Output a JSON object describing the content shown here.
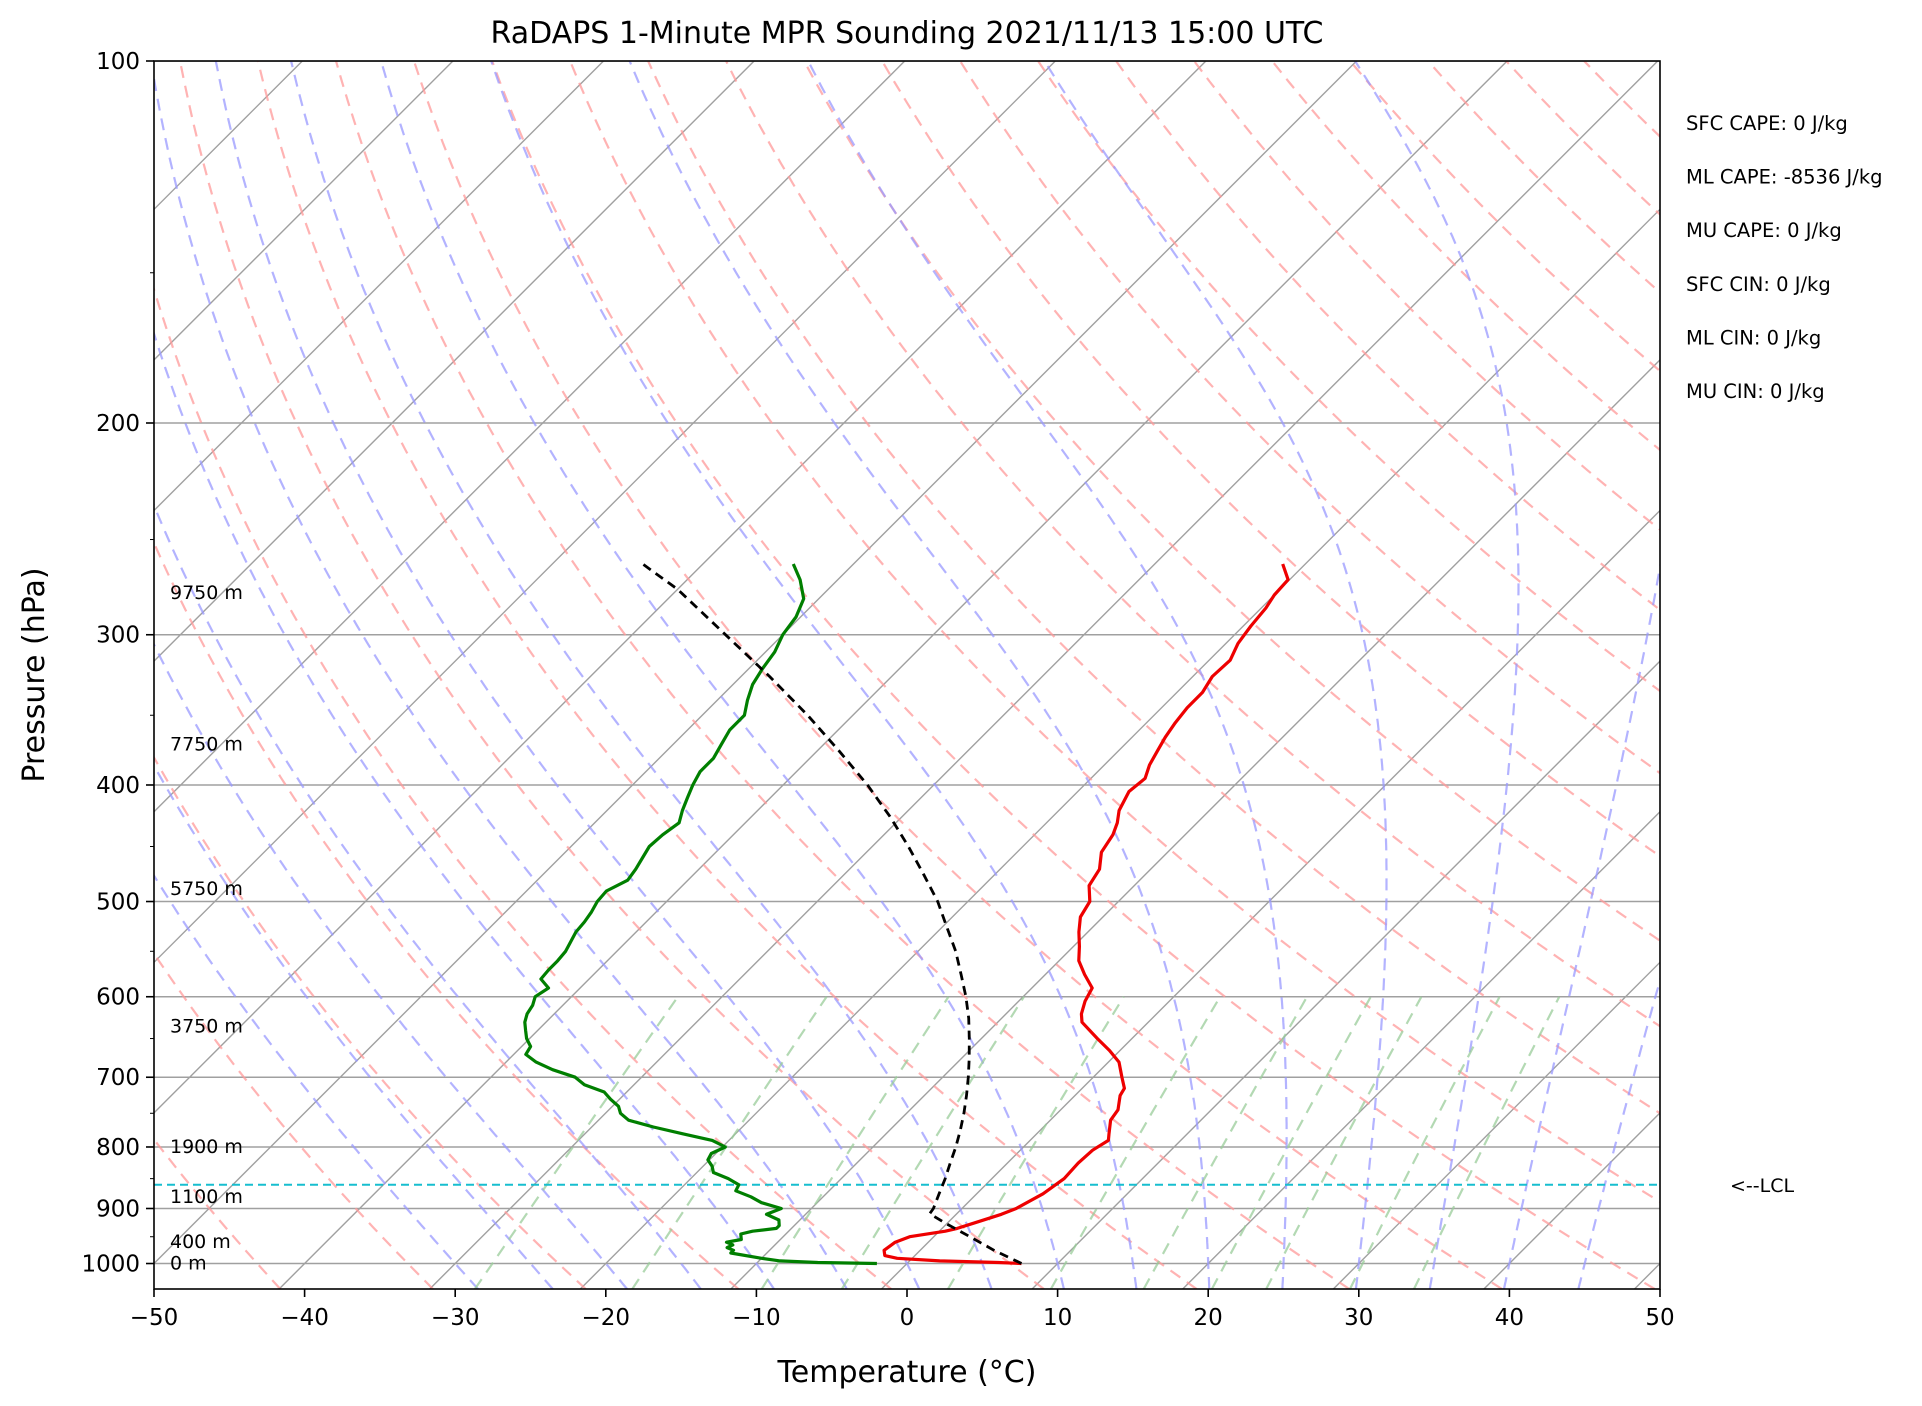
{
  "chart_data": {
    "type": "line",
    "title": "RaDAPS 1-Minute MPR Sounding 2021/11/13 15:00 UTC",
    "xlabel": "Temperature (°C)",
    "ylabel": "Pressure (hPa)",
    "xlim": [
      -50,
      50
    ],
    "ylim": [
      1050,
      100
    ],
    "y_scale": "log",
    "skew": true,
    "x_ticks": [
      "−50",
      "−40",
      "−30",
      "−20",
      "−10",
      "0",
      "10",
      "20",
      "30",
      "40",
      "50"
    ],
    "x_tick_values": [
      -50,
      -40,
      -30,
      -20,
      -10,
      0,
      10,
      20,
      30,
      40,
      50
    ],
    "y_ticks": [
      "100",
      "200",
      "300",
      "400",
      "500",
      "600",
      "700",
      "800",
      "900",
      "1000"
    ],
    "y_tick_values": [
      100,
      200,
      300,
      400,
      500,
      600,
      700,
      800,
      900,
      1000
    ],
    "grid": true,
    "colors": {
      "temperature": "#ee0000",
      "dewpoint": "#007f00",
      "parcel": "#000000",
      "lcl": "#17becf",
      "dry_adiabat": "#ff9999",
      "moist_adiabat": "#9999ff",
      "mixing_ratio": "#99cc99",
      "isotherm": "#a0a0a0"
    },
    "series": [
      {
        "role": "temperature",
        "points": [
          [
            7.6,
            1000
          ],
          [
            6.0,
            998
          ],
          [
            2.0,
            995
          ],
          [
            -1.0,
            990
          ],
          [
            -2.0,
            985
          ],
          [
            -2.4,
            975
          ],
          [
            -2.2,
            960
          ],
          [
            -1.6,
            950
          ],
          [
            0.4,
            940
          ],
          [
            1.0,
            935
          ],
          [
            1.8,
            925
          ],
          [
            3.0,
            910
          ],
          [
            3.6,
            900
          ],
          [
            4.4,
            875
          ],
          [
            4.8,
            850
          ],
          [
            4.7,
            825
          ],
          [
            4.8,
            805
          ],
          [
            5.2,
            790
          ],
          [
            4.8,
            780
          ],
          [
            4.0,
            760
          ],
          [
            3.8,
            745
          ],
          [
            3.0,
            725
          ],
          [
            2.8,
            715
          ],
          [
            1.9,
            700
          ],
          [
            0.7,
            680
          ],
          [
            -0.7,
            665
          ],
          [
            -2.3,
            650
          ],
          [
            -4.4,
            630
          ],
          [
            -5.0,
            620
          ],
          [
            -5.6,
            605
          ],
          [
            -6.0,
            590
          ],
          [
            -7.4,
            575
          ],
          [
            -8.7,
            560
          ],
          [
            -9.6,
            545
          ],
          [
            -10.6,
            530
          ],
          [
            -11.5,
            515
          ],
          [
            -11.9,
            500
          ],
          [
            -13.0,
            485
          ],
          [
            -13.4,
            470
          ],
          [
            -14.4,
            455
          ],
          [
            -14.8,
            440
          ],
          [
            -15.3,
            430
          ],
          [
            -16.0,
            420
          ],
          [
            -16.6,
            405
          ],
          [
            -16.4,
            395
          ],
          [
            -17.0,
            385
          ],
          [
            -17.4,
            375
          ],
          [
            -17.8,
            365
          ],
          [
            -18.1,
            355
          ],
          [
            -18.3,
            345
          ],
          [
            -18.3,
            335
          ],
          [
            -18.7,
            325
          ],
          [
            -18.6,
            315
          ],
          [
            -19.2,
            305
          ],
          [
            -19.5,
            295
          ],
          [
            -19.7,
            285
          ],
          [
            -20.0,
            278
          ],
          [
            -20.1,
            270
          ],
          [
            -21.5,
            262
          ]
        ]
      },
      {
        "role": "dewpoint",
        "points": [
          [
            -2.0,
            1000
          ],
          [
            -6.0,
            998
          ],
          [
            -8.6,
            995
          ],
          [
            -10.0,
            990
          ],
          [
            -12.4,
            980
          ],
          [
            -12.4,
            975
          ],
          [
            -13.0,
            970
          ],
          [
            -12.8,
            965
          ],
          [
            -13.4,
            960
          ],
          [
            -12.6,
            955
          ],
          [
            -12.8,
            950
          ],
          [
            -13.0,
            945
          ],
          [
            -12.4,
            940
          ],
          [
            -11.0,
            935
          ],
          [
            -11.0,
            930
          ],
          [
            -11.4,
            920
          ],
          [
            -12.6,
            910
          ],
          [
            -12.0,
            900
          ],
          [
            -13.7,
            890
          ],
          [
            -14.8,
            880
          ],
          [
            -16.2,
            870
          ],
          [
            -16.4,
            860
          ],
          [
            -17.5,
            850
          ],
          [
            -18.9,
            840
          ],
          [
            -19.4,
            830
          ],
          [
            -20.1,
            820
          ],
          [
            -20.3,
            810
          ],
          [
            -19.8,
            800
          ],
          [
            -21.1,
            790
          ],
          [
            -23.5,
            780
          ],
          [
            -25.9,
            770
          ],
          [
            -28.0,
            760
          ],
          [
            -29.0,
            750
          ],
          [
            -29.6,
            740
          ],
          [
            -30.6,
            730
          ],
          [
            -31.5,
            720
          ],
          [
            -33.3,
            710
          ],
          [
            -34.4,
            700
          ],
          [
            -36.4,
            690
          ],
          [
            -38.0,
            680
          ],
          [
            -39.2,
            670
          ],
          [
            -39.4,
            660
          ],
          [
            -40.2,
            650
          ],
          [
            -40.8,
            640
          ],
          [
            -41.4,
            630
          ],
          [
            -41.8,
            620
          ],
          [
            -42.0,
            610
          ],
          [
            -42.4,
            600
          ],
          [
            -42.1,
            590
          ],
          [
            -43.2,
            580
          ],
          [
            -43.3,
            570
          ],
          [
            -43.3,
            560
          ],
          [
            -43.4,
            550
          ],
          [
            -43.7,
            540
          ],
          [
            -44.0,
            530
          ],
          [
            -44.1,
            520
          ],
          [
            -44.3,
            510
          ],
          [
            -44.6,
            500
          ],
          [
            -44.7,
            490
          ],
          [
            -44.0,
            480
          ],
          [
            -44.2,
            470
          ],
          [
            -44.5,
            460
          ],
          [
            -44.8,
            450
          ],
          [
            -44.7,
            440
          ],
          [
            -44.4,
            430
          ],
          [
            -45.0,
            420
          ],
          [
            -45.5,
            410
          ],
          [
            -46.0,
            400
          ],
          [
            -46.4,
            390
          ],
          [
            -46.4,
            380
          ],
          [
            -46.8,
            370
          ],
          [
            -47.2,
            360
          ],
          [
            -47.2,
            350
          ],
          [
            -48.0,
            340
          ],
          [
            -48.7,
            330
          ],
          [
            -49.1,
            320
          ],
          [
            -49.4,
            310
          ],
          [
            -50.0,
            300
          ],
          [
            -50.3,
            290
          ],
          [
            -51.0,
            280
          ],
          [
            -52.5,
            270
          ],
          [
            -54.0,
            262
          ]
        ]
      },
      {
        "role": "parcel",
        "points": [
          [
            7.6,
            1000
          ],
          [
            4.9,
            975
          ],
          [
            2.4,
            950
          ],
          [
            -0.2,
            925
          ],
          [
            -1.8,
            909
          ],
          [
            -1.9,
            900
          ],
          [
            -2.5,
            875
          ],
          [
            -3.1,
            850
          ],
          [
            -3.8,
            825
          ],
          [
            -4.5,
            800
          ],
          [
            -5.3,
            775
          ],
          [
            -6.2,
            750
          ],
          [
            -7.2,
            725
          ],
          [
            -8.3,
            700
          ],
          [
            -9.5,
            675
          ],
          [
            -10.8,
            650
          ],
          [
            -12.2,
            625
          ],
          [
            -13.8,
            600
          ],
          [
            -15.6,
            575
          ],
          [
            -17.5,
            550
          ],
          [
            -19.7,
            525
          ],
          [
            -22.0,
            500
          ],
          [
            -24.7,
            475
          ],
          [
            -27.6,
            450
          ],
          [
            -30.8,
            425
          ],
          [
            -34.4,
            400
          ],
          [
            -38.5,
            375
          ],
          [
            -43.0,
            350
          ],
          [
            -48.1,
            325
          ],
          [
            -53.8,
            300
          ],
          [
            -60.0,
            275
          ],
          [
            -64.0,
            262
          ]
        ]
      }
    ],
    "lcl_pressure": 860,
    "lcl_label": "<--LCL",
    "height_labels": [
      {
        "text": "0 m",
        "p": 1000
      },
      {
        "text": "400 m",
        "p": 960
      },
      {
        "text": "1100 m",
        "p": 880
      },
      {
        "text": "1900 m",
        "p": 800
      },
      {
        "text": "3750 m",
        "p": 635
      },
      {
        "text": "5750 m",
        "p": 488
      },
      {
        "text": "7750 m",
        "p": 370
      },
      {
        "text": "9750 m",
        "p": 277
      }
    ],
    "annotations": [
      "SFC CAPE: 0 J/kg",
      "ML CAPE: -8536 J/kg",
      "MU CAPE: 0 J/kg",
      "SFC CIN: 0 J/kg",
      "ML CIN: 0 J/kg",
      "MU CIN: 0 J/kg"
    ]
  }
}
